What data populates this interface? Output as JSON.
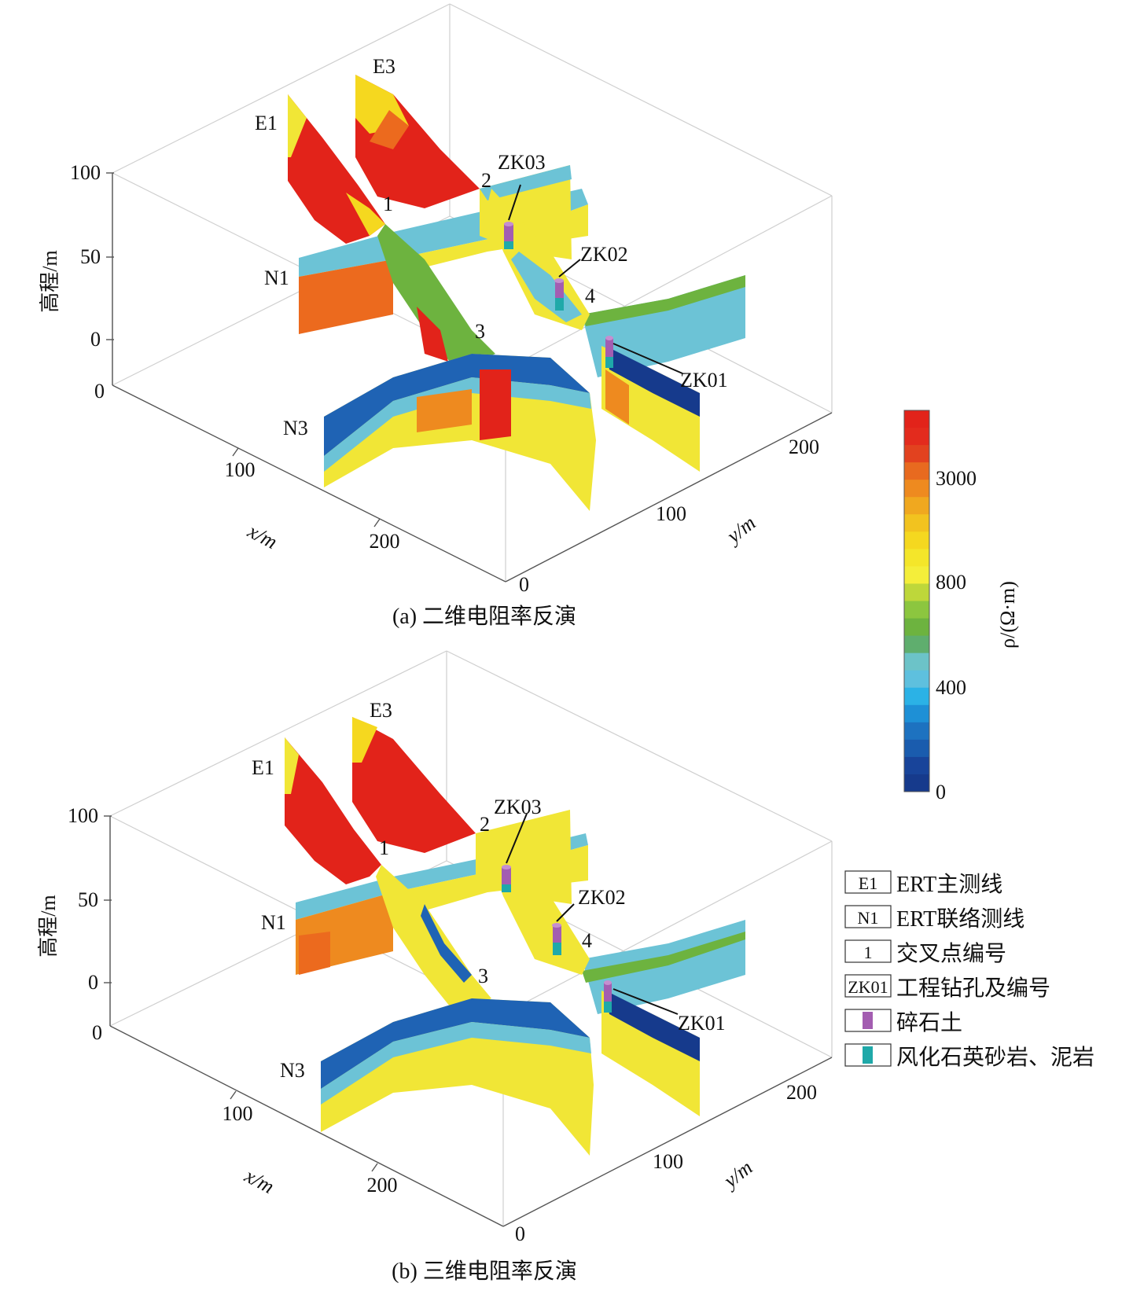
{
  "panels": [
    {
      "caption": "(a) 二维电阻率反演",
      "z_axis": {
        "title": "高程/m",
        "ticks": [
          "100",
          "50",
          "0",
          "0"
        ]
      },
      "x_axis": {
        "title": "x/m",
        "ticks": [
          "100",
          "200"
        ]
      },
      "y_axis": {
        "title": "y/m",
        "ticks": [
          "0",
          "100",
          "200"
        ]
      },
      "lines": [
        "E1",
        "E3",
        "N1",
        "N3"
      ],
      "cross_points": [
        "1",
        "2",
        "3",
        "4"
      ],
      "boreholes": [
        "ZK03",
        "ZK02",
        "ZK01"
      ]
    },
    {
      "caption": "(b) 三维电阻率反演",
      "z_axis": {
        "title": "高程/m",
        "ticks": [
          "100",
          "50",
          "0",
          "0"
        ]
      },
      "x_axis": {
        "title": "x/m",
        "ticks": [
          "100",
          "200"
        ]
      },
      "y_axis": {
        "title": "y/m",
        "ticks": [
          "0",
          "100",
          "200"
        ]
      },
      "lines": [
        "E1",
        "E3",
        "N1",
        "N3"
      ],
      "cross_points": [
        "1",
        "2",
        "3",
        "4"
      ],
      "boreholes": [
        "ZK03",
        "ZK02",
        "ZK01"
      ]
    }
  ],
  "colorbar": {
    "title": "ρ/(Ω·m)",
    "ticks": [
      "3000",
      "800",
      "400",
      "0"
    ],
    "colors": [
      "#e2231a",
      "#e32b1d",
      "#e2421f",
      "#e86a1f",
      "#ee8a1f",
      "#f0a81f",
      "#f2c31f",
      "#f5d81f",
      "#f4e62a",
      "#f4ee3a",
      "#bed73a",
      "#8cc63f",
      "#6db33f",
      "#5fae6e",
      "#6cc3c8",
      "#5ec0de",
      "#2bb2e6",
      "#1e90d6",
      "#1d72c0",
      "#1a5cae",
      "#18449a",
      "#163a8c"
    ]
  },
  "legend": [
    {
      "symbol": "E1",
      "label": "ERT主测线",
      "icon": "boxed-text"
    },
    {
      "symbol": "N1",
      "label": "ERT联络测线",
      "icon": "boxed-text"
    },
    {
      "symbol": "1",
      "label": "交叉点编号",
      "icon": "boxed-text"
    },
    {
      "symbol": "ZK01",
      "label": "工程钻孔及编号",
      "icon": "boxed-text"
    },
    {
      "symbol": "",
      "label": "碎石土",
      "icon": "purple-cylinder",
      "color": "#a35db1"
    },
    {
      "symbol": "",
      "label": "风化石英砂岩、泥岩",
      "icon": "teal-cylinder",
      "color": "#1fa9a9"
    }
  ],
  "colors": {
    "red": "#e2231a",
    "orange": "#ec6a1e",
    "yellow": "#f1e636",
    "green": "#6db33f",
    "cyan": "#6cc3d6",
    "blue": "#1f63b4",
    "darkblue": "#163a8c"
  }
}
